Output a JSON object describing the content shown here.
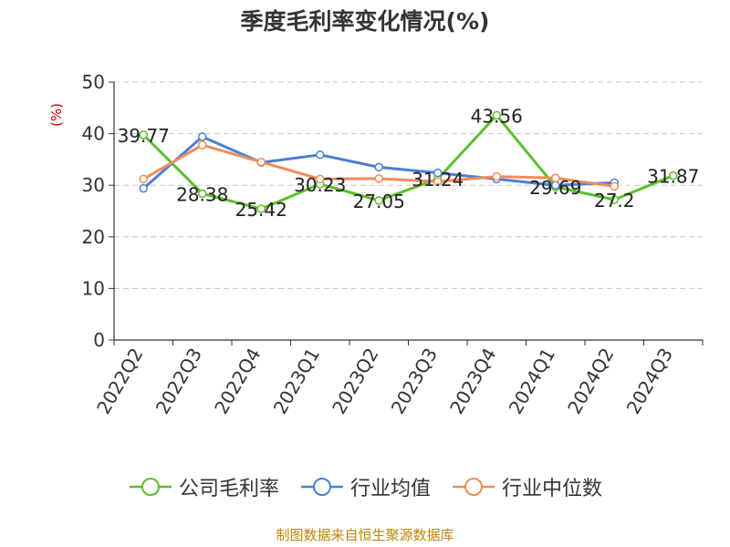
{
  "chart_data": {
    "type": "line",
    "title": "季度毛利率变化情况(%)",
    "ylabel": "(%)",
    "xlabel": "",
    "ylim": [
      0,
      50
    ],
    "yticks": [
      0,
      10,
      20,
      30,
      40,
      50
    ],
    "categories": [
      "2022Q2",
      "2022Q3",
      "2022Q4",
      "2023Q1",
      "2023Q2",
      "2023Q3",
      "2023Q4",
      "2024Q1",
      "2024Q2",
      "2024Q3"
    ],
    "grid": true,
    "legend_position": "bottom",
    "series": [
      {
        "name": "公司毛利率",
        "color": "#5cbf2a",
        "values": [
          39.77,
          28.38,
          25.42,
          30.23,
          27.05,
          31.24,
          43.56,
          29.69,
          27.2,
          31.87
        ],
        "data_labels": [
          "39.77",
          "28.38",
          "25.42",
          "30.23",
          "27.05",
          "31.24",
          "43.56",
          "29.69",
          "27.2",
          "31.87"
        ]
      },
      {
        "name": "行业均值",
        "color": "#4a7fd4",
        "values": [
          29.4,
          39.4,
          34.4,
          35.9,
          33.5,
          32.4,
          31.2,
          30.0,
          30.5,
          null
        ]
      },
      {
        "name": "行业中位数",
        "color": "#f28c5a",
        "values": [
          31.2,
          37.8,
          34.5,
          31.2,
          31.3,
          30.7,
          31.7,
          31.4,
          29.8,
          null
        ]
      }
    ]
  },
  "source": "制图数据来自恒生聚源数据库"
}
